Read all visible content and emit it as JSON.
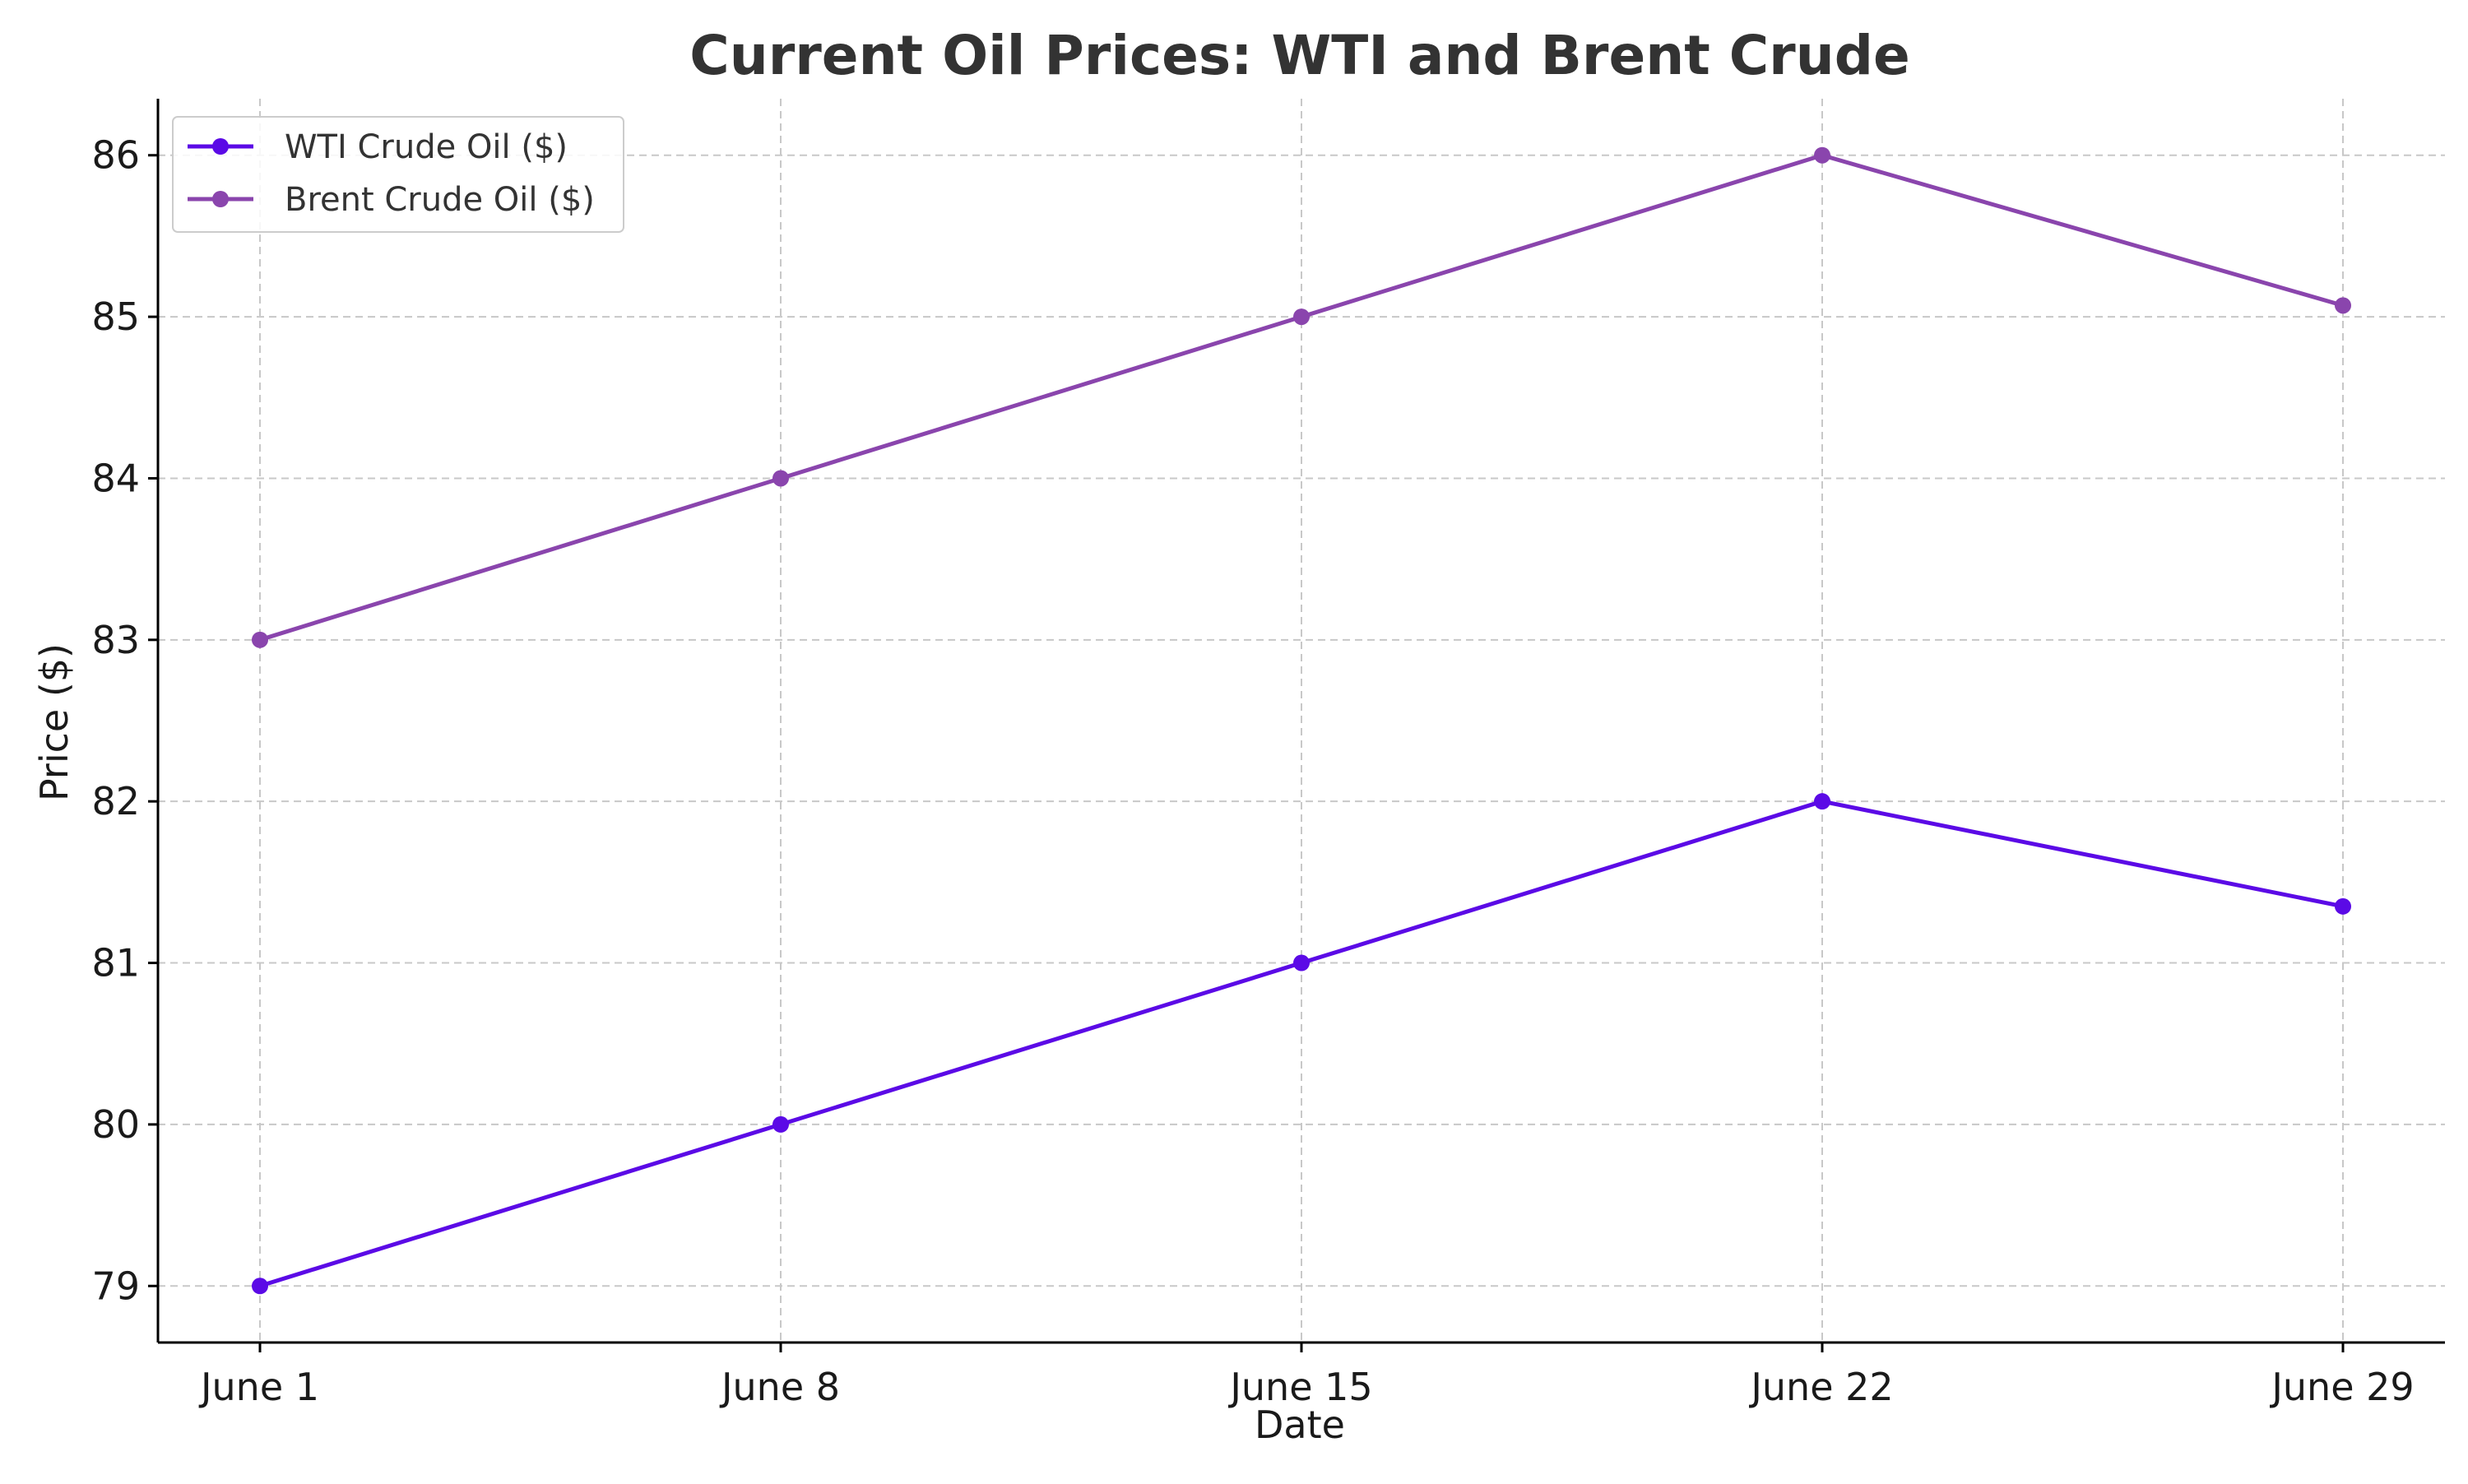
{
  "chart_data": {
    "type": "line",
    "title": "Current Oil Prices: WTI and Brent Crude",
    "xlabel": "Date",
    "ylabel": "Price ($)",
    "categories": [
      "June 1",
      "June 8",
      "June 15",
      "June 22",
      "June 29"
    ],
    "ylim": [
      78.65,
      86.35
    ],
    "yticks": [
      79,
      80,
      81,
      82,
      83,
      84,
      85,
      86
    ],
    "grid": true,
    "legend_position": "upper-left",
    "series": [
      {
        "name": "WTI Crude Oil ($)",
        "color": "#5b0ae6",
        "marker": "circle",
        "values": [
          79.0,
          80.0,
          81.0,
          82.0,
          81.35
        ]
      },
      {
        "name": "Brent Crude Oil ($)",
        "color": "#8a45ad",
        "marker": "circle",
        "values": [
          83.0,
          84.0,
          85.0,
          86.0,
          85.07
        ]
      }
    ]
  }
}
